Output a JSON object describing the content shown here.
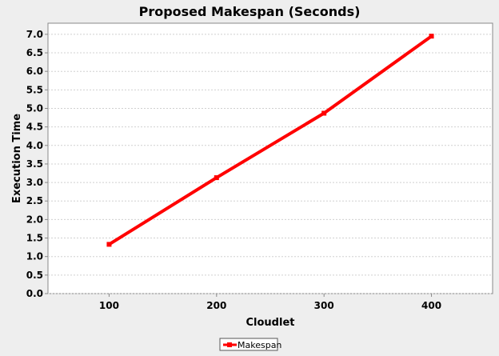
{
  "chart_data": {
    "type": "line",
    "title": "Proposed Makespan (Seconds)",
    "xlabel": "Cloudlet",
    "ylabel": "Execution Time",
    "categories": [
      "100",
      "200",
      "300",
      "400"
    ],
    "series": [
      {
        "name": "Makespan",
        "values": [
          1.33,
          3.13,
          4.87,
          6.95
        ]
      }
    ],
    "yticks": [
      "0.0",
      "0.5",
      "1.0",
      "1.5",
      "2.0",
      "2.5",
      "3.0",
      "3.5",
      "4.0",
      "4.5",
      "5.0",
      "5.5",
      "6.0",
      "6.5",
      "7.0"
    ],
    "ylim": [
      0,
      7.3
    ],
    "grid": true,
    "legend_position": "bottom",
    "colors": {
      "series": "#ff0000",
      "background": "#eeeeee",
      "plot_background": "#ffffff",
      "gridline": "#d0d0d0",
      "axis": "#888888"
    }
  }
}
